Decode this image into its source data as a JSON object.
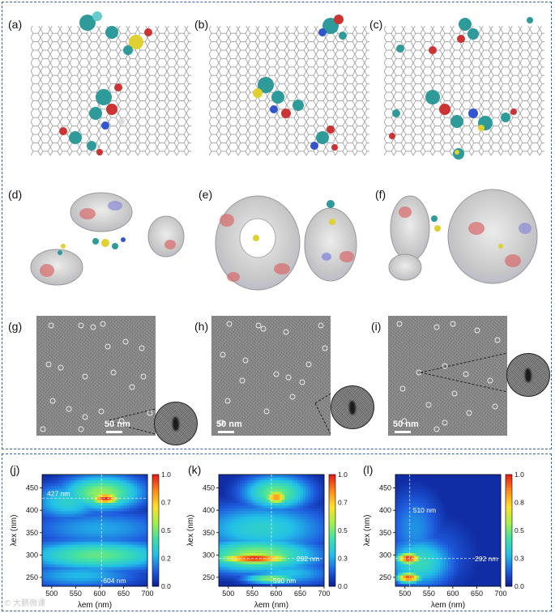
{
  "panels": {
    "a": "(a)",
    "b": "(b)",
    "c": "(c)",
    "d": "(d)",
    "e": "(e)",
    "f": "(f)",
    "g": "(g)",
    "h": "(h)",
    "i": "(i)",
    "j": "(j)",
    "k": "(k)",
    "l": "(l)"
  },
  "tem": {
    "scale_label": "50 nm"
  },
  "watermark": "© 大鹏微课",
  "chart_data": [
    {
      "type": "heatmap",
      "panel": "(j)",
      "xlabel": "λem (nm)",
      "ylabel": "λex (nm)",
      "xlim": [
        480,
        700
      ],
      "ylim": [
        230,
        480
      ],
      "xticks": [
        500,
        550,
        600,
        650,
        700
      ],
      "yticks": [
        250,
        300,
        350,
        400,
        450
      ],
      "colorbar": {
        "min": 0.0,
        "max": 1.0,
        "ticks": [
          "0.0",
          "0.2",
          "0.5",
          "0.7",
          "1.0"
        ]
      },
      "colorscale": [
        "#0b1a8f",
        "#1f5fe0",
        "#22c0e8",
        "#3fe0a8",
        "#a6f04a",
        "#ffe02a",
        "#ff8a1a",
        "#e21a1a"
      ],
      "peak_em": 604,
      "peak_ex": 427,
      "markers": {
        "x": 604,
        "y": 427,
        "x_label": "604 nm",
        "y_label": "427 nm"
      },
      "hotspots": [
        {
          "em": 612,
          "ex": 427,
          "sem": 22,
          "sex": 9,
          "v": 1.0
        },
        {
          "em": 605,
          "ex": 440,
          "sem": 60,
          "sex": 28,
          "v": 0.55
        },
        {
          "em": 535,
          "ex": 420,
          "sem": 55,
          "sex": 30,
          "v": 0.35
        },
        {
          "em": 595,
          "ex": 300,
          "sem": 110,
          "sex": 25,
          "v": 0.48
        },
        {
          "em": 600,
          "ex": 360,
          "sem": 110,
          "sex": 30,
          "v": 0.25
        },
        {
          "em": 560,
          "ex": 255,
          "sem": 90,
          "sex": 20,
          "v": 0.28
        }
      ]
    },
    {
      "type": "heatmap",
      "panel": "(k)",
      "xlabel": "λem (nm)",
      "ylabel": "λex (nm)",
      "xlim": [
        480,
        700
      ],
      "ylim": [
        230,
        480
      ],
      "xticks": [
        500,
        550,
        600,
        650,
        700
      ],
      "yticks": [
        250,
        300,
        350,
        400,
        450
      ],
      "colorbar": {
        "min": 0.0,
        "max": 1.0,
        "ticks": [
          "0.0",
          "0.3",
          "0.5",
          "0.7",
          "1.0"
        ]
      },
      "colorscale": [
        "#0b1a8f",
        "#1f5fe0",
        "#22c0e8",
        "#3fe0a8",
        "#a6f04a",
        "#ffe02a",
        "#ff8a1a",
        "#e21a1a"
      ],
      "peak_em": 590,
      "peak_ex": 292,
      "markers": {
        "x": 590,
        "y": 292,
        "x_label": "590 nm",
        "y_label": "292 nm"
      },
      "hotspots": [
        {
          "em": 555,
          "ex": 293,
          "sem": 55,
          "sex": 9,
          "v": 1.0
        },
        {
          "em": 600,
          "ex": 430,
          "sem": 18,
          "sex": 12,
          "v": 0.85
        },
        {
          "em": 600,
          "ex": 440,
          "sem": 50,
          "sex": 28,
          "v": 0.5
        },
        {
          "em": 560,
          "ex": 300,
          "sem": 90,
          "sex": 28,
          "v": 0.55
        },
        {
          "em": 590,
          "ex": 248,
          "sem": 40,
          "sex": 8,
          "v": 0.55
        },
        {
          "em": 570,
          "ex": 360,
          "sem": 100,
          "sex": 40,
          "v": 0.35
        },
        {
          "em": 620,
          "ex": 260,
          "sem": 70,
          "sex": 20,
          "v": 0.3
        }
      ]
    },
    {
      "type": "heatmap",
      "panel": "(l)",
      "xlabel": "λem (nm)",
      "ylabel": "λex (nm)",
      "xlim": [
        480,
        700
      ],
      "ylim": [
        230,
        480
      ],
      "xticks": [
        500,
        550,
        600,
        650,
        700
      ],
      "yticks": [
        250,
        300,
        350,
        400,
        450
      ],
      "colorbar": {
        "min": 0.0,
        "max": 1.0,
        "ticks": [
          "0.0",
          "0.3",
          "0.5",
          "0.8",
          "1.0"
        ]
      },
      "colorscale": [
        "#0b1a8f",
        "#1f5fe0",
        "#22c0e8",
        "#3fe0a8",
        "#a6f04a",
        "#ffe02a",
        "#ff8a1a",
        "#e21a1a"
      ],
      "peak_em": 510,
      "peak_ex": 292,
      "markers": {
        "x": 510,
        "y": 292,
        "x_label": "510 nm",
        "y_label": "292 nm"
      },
      "hotspots": [
        {
          "em": 508,
          "ex": 293,
          "sem": 18,
          "sex": 9,
          "v": 1.0
        },
        {
          "em": 508,
          "ex": 250,
          "sem": 18,
          "sex": 8,
          "v": 0.95
        },
        {
          "em": 530,
          "ex": 285,
          "sem": 50,
          "sex": 40,
          "v": 0.4
        },
        {
          "em": 520,
          "ex": 360,
          "sem": 40,
          "sex": 60,
          "v": 0.22
        },
        {
          "em": 560,
          "ex": 300,
          "sem": 60,
          "sex": 60,
          "v": 0.15
        }
      ]
    }
  ]
}
